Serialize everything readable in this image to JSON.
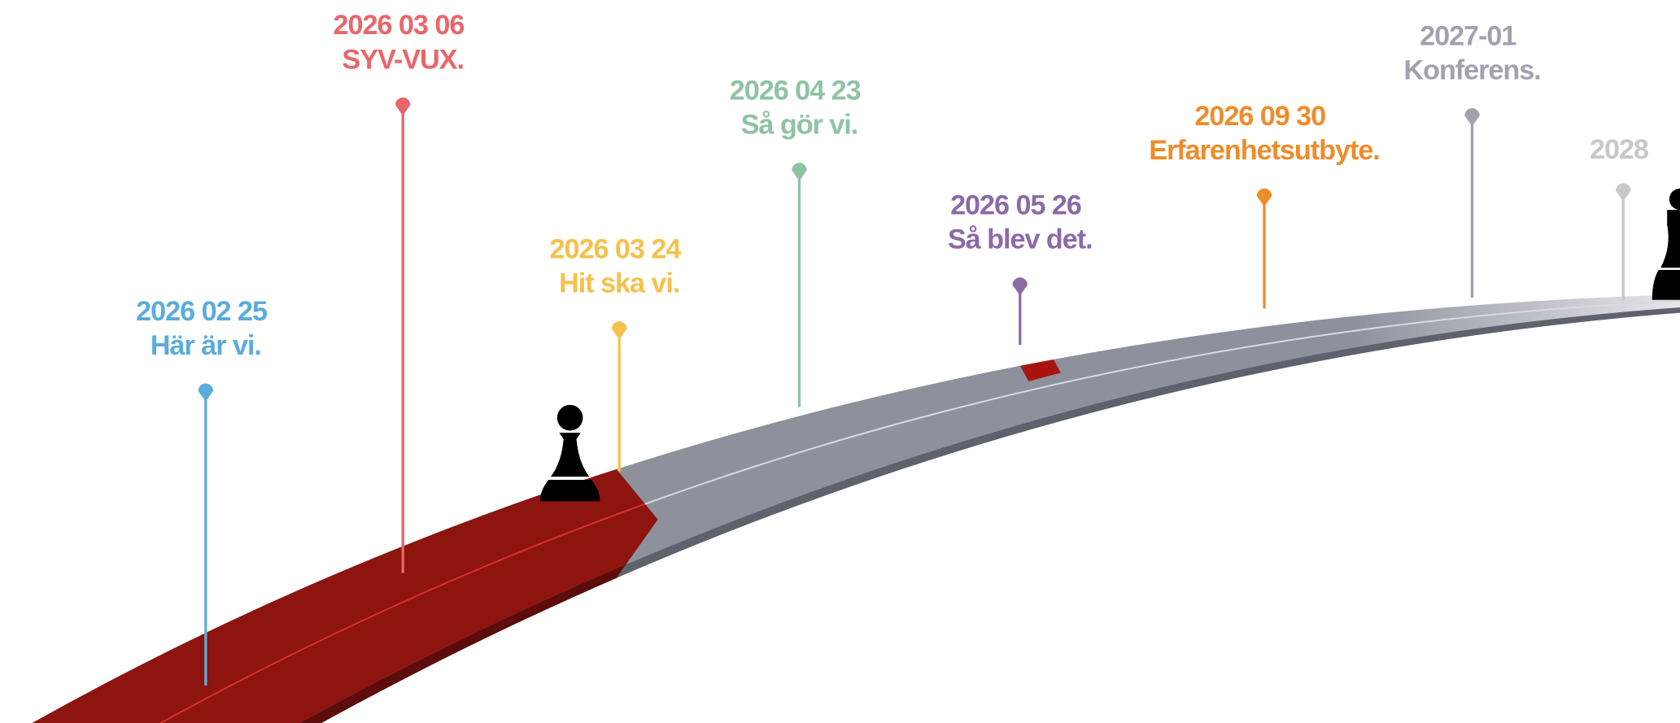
{
  "milestones": [
    {
      "date": "2026 02 25",
      "label": "Här är vi.",
      "color": "#5aacdc"
    },
    {
      "date": "2026 03 06",
      "label": "SYV-VUX.",
      "color": "#e8666a"
    },
    {
      "date": "2026 03 24",
      "label": "Hit ska vi.",
      "color": "#f5c14b"
    },
    {
      "date": "2026 04 23",
      "label": "Så gör vi.",
      "color": "#8ec3a4"
    },
    {
      "date": "2026 05 26",
      "label": "Så blev det.",
      "color": "#8c6aa8"
    },
    {
      "date": "2026 09 30",
      "label": "Erfarenhetsutbyte.",
      "color": "#ef8c2a"
    },
    {
      "date": "2027-01",
      "label": "Konferens.",
      "color": "#a0a3ae"
    },
    {
      "date": "2028",
      "color": "#c8c8c8"
    }
  ]
}
